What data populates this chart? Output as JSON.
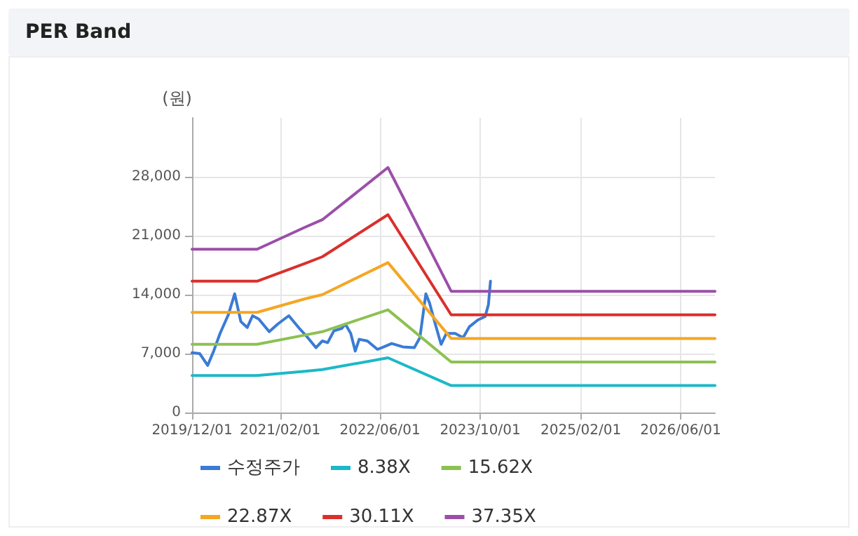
{
  "chart_data": {
    "type": "line",
    "title": "PER Band",
    "ylabel": "(원)",
    "xlim": [
      "2019-12-01",
      "2026-11-15"
    ],
    "xticks": [
      {
        "value": "2019-12-01",
        "label": "2019/12/01"
      },
      {
        "value": "2021-02-01",
        "label": "2021/02/01"
      },
      {
        "value": "2022-06-01",
        "label": "2022/06/01"
      },
      {
        "value": "2023-10-01",
        "label": "2023/10/01"
      },
      {
        "value": "2025-02-01",
        "label": "2025/02/01"
      },
      {
        "value": "2026-06-01",
        "label": "2026/06/01"
      }
    ],
    "ylim": [
      0,
      35000
    ],
    "yticks": [
      0,
      {
        "value": 7000,
        "label": "7,000"
      },
      {
        "value": 14000,
        "label": "14,000"
      },
      {
        "value": 21000,
        "label": "21,000"
      },
      {
        "value": 28000,
        "label": "28,000"
      }
    ],
    "grid": true,
    "legend": "bottom",
    "marker": "none",
    "line_style": "solid",
    "series": [
      {
        "name": "수정주가",
        "color": "#3a7bd5",
        "x": [
          "2019-12-01",
          "2020-01-07",
          "2020-02-15",
          "2020-03-15",
          "2020-04-15",
          "2020-05-25",
          "2020-06-25",
          "2020-07-25",
          "2020-08-25",
          "2020-09-20",
          "2020-10-20",
          "2020-12-10",
          "2021-01-20",
          "2021-03-15",
          "2021-05-05",
          "2021-06-15",
          "2021-07-25",
          "2021-08-25",
          "2021-09-20",
          "2021-10-20",
          "2021-11-28",
          "2021-12-15",
          "2022-01-10",
          "2022-02-01",
          "2022-02-20",
          "2022-04-01",
          "2022-05-20",
          "2022-06-20",
          "2022-07-28",
          "2022-09-20",
          "2022-11-15",
          "2022-12-12",
          "2023-01-10",
          "2023-01-28",
          "2023-02-25",
          "2023-03-25",
          "2023-04-20",
          "2023-06-01",
          "2023-07-10",
          "2023-08-10",
          "2023-09-20",
          "2023-10-25",
          "2023-11-10",
          "2023-11-20"
        ],
        "values": [
          7100,
          7000,
          5600,
          7300,
          9400,
          11600,
          14100,
          10800,
          10100,
          11500,
          11100,
          9600,
          10500,
          11500,
          10000,
          8900,
          7700,
          8500,
          8300,
          9700,
          10000,
          10500,
          9400,
          7300,
          8700,
          8500,
          7500,
          7800,
          8200,
          7800,
          7700,
          8900,
          14100,
          13000,
          10500,
          8100,
          9400,
          9400,
          8900,
          10200,
          11000,
          11400,
          12800,
          15600
        ]
      },
      {
        "name": "8.38X",
        "color": "#1cb8c8",
        "x": [
          "2019-12-01",
          "2020-10-12",
          "2021-06-01",
          "2021-08-25",
          "2022-07-10",
          "2023-05-13",
          "2026-11-15"
        ],
        "values": [
          4400,
          4400,
          4900,
          5100,
          6500,
          3200,
          3200
        ]
      },
      {
        "name": "15.62X",
        "color": "#8cc152",
        "x": [
          "2019-12-01",
          "2020-10-12",
          "2021-06-01",
          "2021-08-25",
          "2022-07-10",
          "2023-05-13",
          "2026-11-15"
        ],
        "values": [
          8100,
          8100,
          9200,
          9600,
          12200,
          6000,
          6000
        ]
      },
      {
        "name": "22.87X",
        "color": "#f5a623",
        "x": [
          "2019-12-01",
          "2020-10-12",
          "2021-06-01",
          "2021-08-25",
          "2022-07-10",
          "2023-05-13",
          "2026-11-15"
        ],
        "values": [
          11900,
          11900,
          13500,
          14000,
          17800,
          8800,
          8800
        ]
      },
      {
        "name": "30.11X",
        "color": "#d9302c",
        "x": [
          "2019-12-01",
          "2020-10-12",
          "2021-06-01",
          "2021-08-25",
          "2022-07-10",
          "2023-05-13",
          "2026-11-15"
        ],
        "values": [
          15600,
          15600,
          17700,
          18500,
          23500,
          11600,
          11600
        ]
      },
      {
        "name": "37.35X",
        "color": "#9b4fa8",
        "x": [
          "2019-12-01",
          "2020-10-12",
          "2021-06-01",
          "2021-08-25",
          "2022-07-10",
          "2023-05-13",
          "2026-11-15"
        ],
        "values": [
          19400,
          19400,
          22000,
          22900,
          29100,
          14400,
          14400
        ]
      }
    ]
  }
}
